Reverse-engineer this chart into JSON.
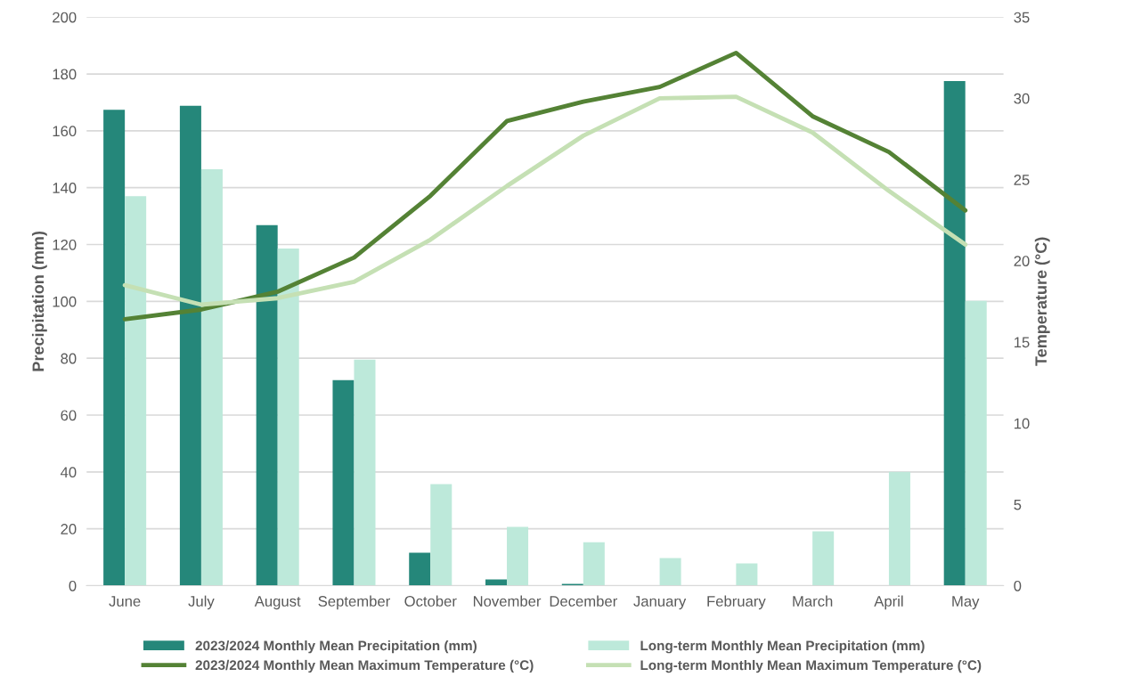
{
  "chart_data": {
    "type": "bar",
    "categories": [
      "June",
      "July",
      "August",
      "September",
      "October",
      "November",
      "December",
      "January",
      "February",
      "March",
      "April",
      "May"
    ],
    "ylabel": "Precipitation (mm)",
    "y2label": "Temperature (°C)",
    "ylim": [
      0,
      200
    ],
    "yticks": [
      0,
      20,
      40,
      60,
      80,
      100,
      120,
      140,
      160,
      180,
      200
    ],
    "y2lim": [
      0,
      35
    ],
    "y2ticks": [
      0,
      5,
      10,
      15,
      20,
      25,
      30,
      35
    ],
    "grid": "y",
    "legend": "bottom",
    "series": [
      {
        "name": "2023/2024 Monthly Mean Precipitation (mm)",
        "color": "#25877a",
        "values": [
          167.4,
          168.8,
          126.8,
          72.3,
          11.6,
          2.2,
          0.6,
          0,
          0,
          0,
          0,
          177.5
        ]
      },
      {
        "name": "Long-term Monthly Mean Precipitation (mm)",
        "color": "#bde9da",
        "values": [
          137,
          146.5,
          118.6,
          79.5,
          35.7,
          20.7,
          15.3,
          9.7,
          7.8,
          19.1,
          40,
          100.2
        ]
      },
      {
        "name": "2023/2024 Monthly Mean Maximum Temperature (°C)",
        "type": "line",
        "axis": "y2",
        "color": "#548235",
        "values": [
          16.4,
          17.0,
          18.1,
          20.2,
          24.0,
          28.6,
          29.8,
          30.7,
          32.8,
          28.9,
          26.7,
          23.1
        ]
      },
      {
        "name": "Long-term Monthly Mean Maximum Temperature (°C)",
        "type": "line",
        "axis": "y2",
        "color": "#c5e0b4",
        "values": [
          18.5,
          17.3,
          17.7,
          18.7,
          21.3,
          24.6,
          27.7,
          30.0,
          30.1,
          27.9,
          24.3,
          21.0
        ]
      }
    ]
  }
}
